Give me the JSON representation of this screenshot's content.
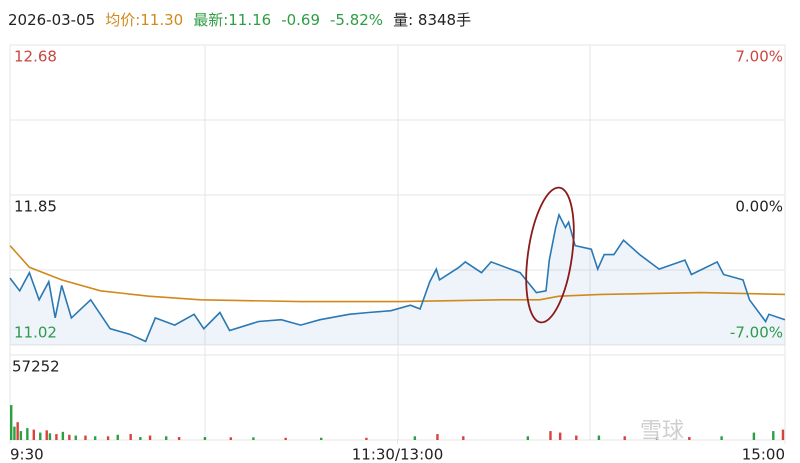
{
  "chart_data": {
    "type": "line",
    "header": {
      "date": "2026-03-05",
      "avg": "均价:11.30",
      "last": "最新:11.16",
      "change": "-0.69",
      "change_pct": "-5.82%",
      "volume": "量: 8348手"
    },
    "header_colors": {
      "date": "#222222",
      "avg": "#d08a1c",
      "last": "#2e9e44",
      "change": "#2e9e44",
      "change_pct": "#2e9e44",
      "volume": "#222222"
    },
    "xlim": [
      0,
      240
    ],
    "xticks": [
      {
        "value": 0,
        "label": "9:30"
      },
      {
        "value": 120,
        "label": "11:30/13:00"
      },
      {
        "value": 240,
        "label": "15:00"
      }
    ],
    "ylim": [
      11.02,
      12.68
    ],
    "yticks": [
      11.02,
      11.85,
      12.68
    ],
    "y2lim": [
      -7,
      7
    ],
    "y2ticks": [
      {
        "value": -7,
        "label": "-7.00%"
      },
      {
        "value": 0,
        "label": "0.00%"
      },
      {
        "value": 7,
        "label": "7.00%"
      }
    ],
    "price": {
      "color": "#2a78b4",
      "x": [
        0,
        3,
        6,
        9,
        12,
        14,
        16,
        19,
        25,
        31,
        37,
        42,
        45,
        51,
        57,
        60,
        65,
        68,
        77,
        84,
        90,
        96,
        105,
        111,
        118,
        124,
        127,
        130,
        132,
        133,
        139,
        141,
        146,
        149,
        158,
        163,
        166,
        167,
        169,
        170,
        172,
        173,
        175,
        180,
        182,
        184,
        187,
        190,
        195,
        201,
        209,
        211,
        219,
        221,
        227,
        229,
        234,
        235,
        240
      ],
      "values": [
        11.39,
        11.32,
        11.42,
        11.27,
        11.37,
        11.17,
        11.35,
        11.17,
        11.27,
        11.11,
        11.08,
        11.04,
        11.17,
        11.13,
        11.19,
        11.11,
        11.2,
        11.1,
        11.15,
        11.16,
        11.13,
        11.16,
        11.19,
        11.2,
        11.21,
        11.24,
        11.22,
        11.37,
        11.44,
        11.38,
        11.45,
        11.48,
        11.42,
        11.48,
        11.42,
        11.31,
        11.32,
        11.49,
        11.67,
        11.74,
        11.67,
        11.7,
        11.57,
        11.55,
        11.44,
        11.52,
        11.52,
        11.6,
        11.52,
        11.44,
        11.49,
        11.41,
        11.48,
        11.41,
        11.38,
        11.27,
        11.15,
        11.19,
        11.16
      ]
    },
    "avg_price": {
      "color": "#d08a1c",
      "x": [
        0,
        6,
        16,
        28,
        43,
        59,
        90,
        121,
        152,
        164,
        170,
        183,
        214,
        240
      ],
      "values": [
        11.57,
        11.45,
        11.38,
        11.32,
        11.29,
        11.27,
        11.26,
        11.26,
        11.27,
        11.27,
        11.29,
        11.3,
        11.31,
        11.3
      ]
    },
    "volume": {
      "ylim": [
        0,
        57252
      ],
      "yticks": [
        57252
      ],
      "down": {
        "color": "#2e9e44",
        "x": [
          0,
          1,
          3,
          5,
          9,
          12,
          16,
          20,
          26,
          33,
          40,
          48,
          60,
          75,
          96,
          125,
          160,
          182,
          200,
          220,
          230,
          236
        ],
        "values": [
          23500,
          9000,
          6000,
          8000,
          5000,
          4500,
          5500,
          3000,
          2500,
          3500,
          2000,
          2500,
          2000,
          1800,
          1500,
          2500,
          2500,
          3000,
          2000,
          2500,
          5000,
          6000
        ]
      },
      "up": {
        "color": "#d9413a",
        "x": [
          2,
          7,
          11,
          14,
          18,
          23,
          30,
          37,
          43,
          52,
          68,
          85,
          110,
          132,
          140,
          167,
          170,
          175,
          190,
          210,
          239
        ],
        "values": [
          12000,
          7000,
          6500,
          4000,
          3500,
          3000,
          2500,
          4000,
          3000,
          2000,
          1800,
          1500,
          1500,
          4000,
          2500,
          6000,
          5000,
          3000,
          2500,
          2000,
          7000
        ]
      }
    },
    "watermark": "雪球"
  }
}
